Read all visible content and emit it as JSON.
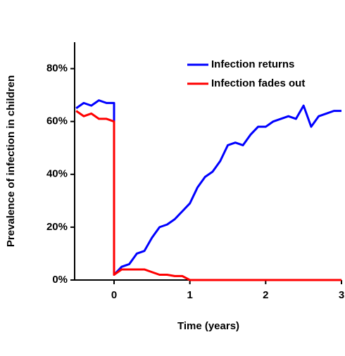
{
  "chart_data": {
    "type": "line",
    "xlabel": "Time (years)",
    "ylabel": "Prevalence of infection in children",
    "x": [
      -0.5,
      -0.4,
      -0.3,
      -0.2,
      -0.1,
      0,
      0,
      0.1,
      0.2,
      0.3,
      0.4,
      0.5,
      0.6,
      0.7,
      0.8,
      0.9,
      1.0,
      1.1,
      1.2,
      1.3,
      1.4,
      1.5,
      1.6,
      1.7,
      1.8,
      1.9,
      2.0,
      2.1,
      2.2,
      2.3,
      2.4,
      2.5,
      2.6,
      2.7,
      2.8,
      2.9,
      3.0
    ],
    "series": [
      {
        "name": "Infection returns",
        "color": "#0000ff",
        "values": [
          65,
          67,
          66,
          68,
          67,
          67,
          2,
          5,
          6,
          10,
          11,
          16,
          20,
          21,
          23,
          26,
          29,
          35,
          39,
          41,
          45,
          51,
          52,
          51,
          55,
          58,
          58,
          60,
          61,
          62,
          61,
          66,
          58,
          62,
          63,
          64,
          64
        ]
      },
      {
        "name": "Infection fades out",
        "color": "#ff0000",
        "values": [
          64,
          62,
          63,
          61,
          61,
          60,
          2,
          4,
          4,
          4,
          4,
          3,
          2,
          2,
          1.5,
          1.5,
          0,
          0,
          0,
          0,
          0,
          0,
          0,
          0,
          0,
          0,
          0,
          0,
          0,
          0,
          0,
          0,
          0,
          0,
          0,
          0,
          0
        ]
      }
    ],
    "xlim": [
      -0.52,
      3
    ],
    "ylim": [
      0,
      90
    ],
    "xticks": [
      0,
      1,
      2,
      3
    ],
    "yticks": [
      {
        "value": 0,
        "label": "0%"
      },
      {
        "value": 20,
        "label": "20%"
      },
      {
        "value": 40,
        "label": "40%"
      },
      {
        "value": 60,
        "label": "60%"
      },
      {
        "value": 80,
        "label": "80%"
      }
    ],
    "legend": "upper right"
  }
}
